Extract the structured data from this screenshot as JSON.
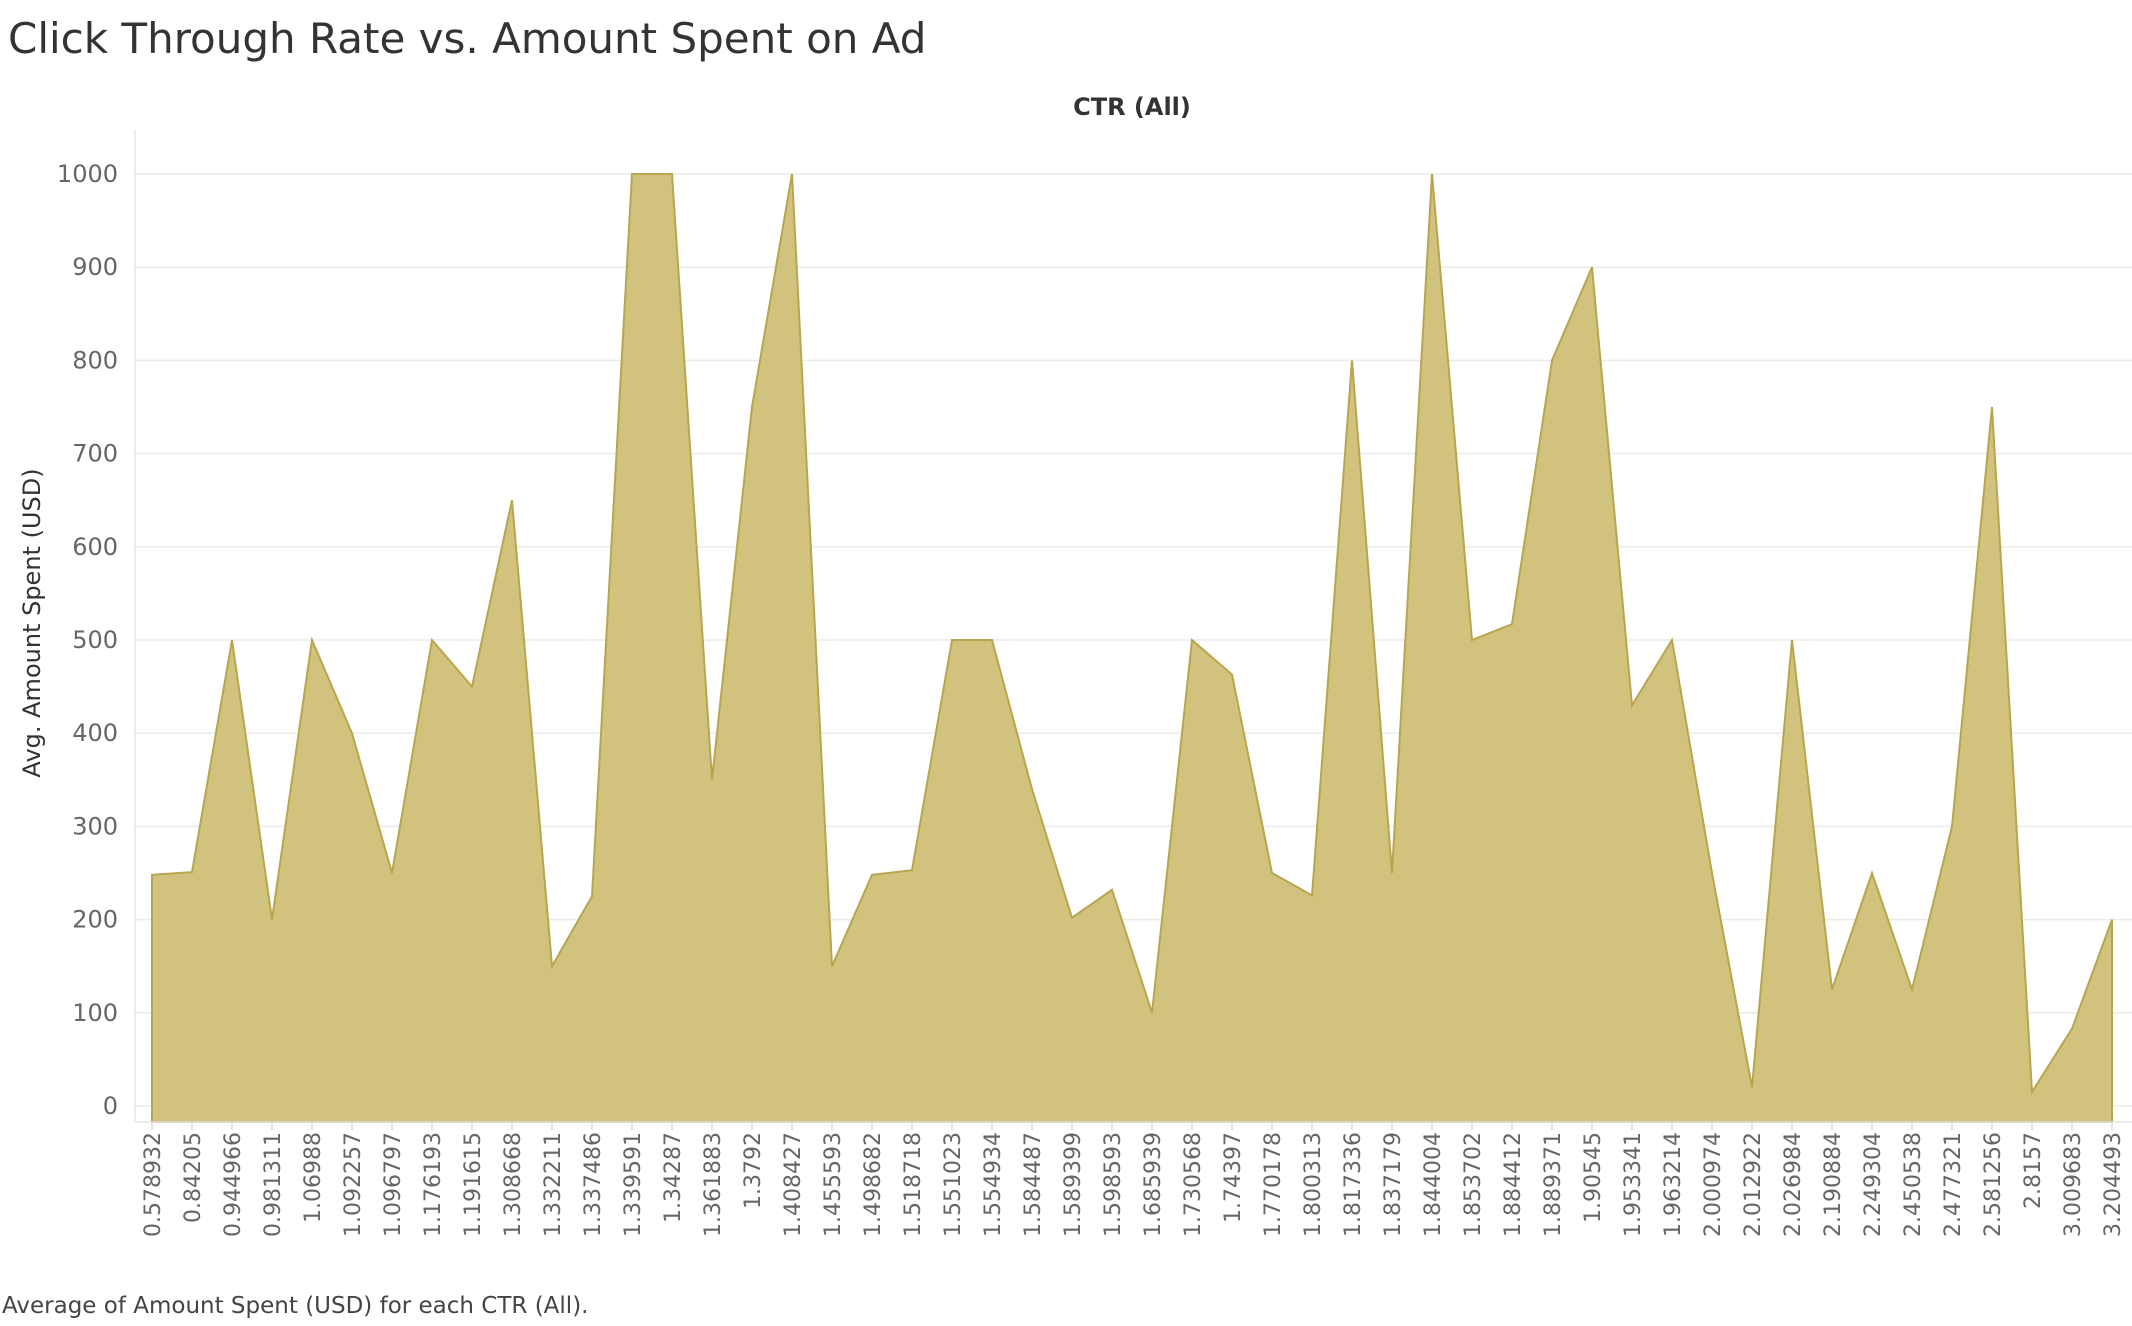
{
  "title": "Click Through Rate vs. Amount Spent on Ad",
  "caption": "Average of Amount Spent (USD) for each CTR (All).",
  "colors": {
    "area_fill": "#D1C27D",
    "area_stroke": "#B9A550",
    "grid": "#EBEBEB"
  },
  "chart_data": {
    "type": "area",
    "title": "",
    "header": "CTR (All)",
    "xlabel": "",
    "ylabel": "Avg. Amount Spent (USD)",
    "ylim": [
      0,
      1000
    ],
    "yticks": [
      0,
      100,
      200,
      300,
      400,
      500,
      600,
      700,
      800,
      900,
      1000
    ],
    "grid": true,
    "categories": [
      "0.578932",
      "0.84205",
      "0.944966",
      "0.981311",
      "1.06988",
      "1.092257",
      "1.096797",
      "1.176193",
      "1.191615",
      "1.308668",
      "1.332211",
      "1.337486",
      "1.339591",
      "1.34287",
      "1.361883",
      "1.3792",
      "1.408427",
      "1.455593",
      "1.498682",
      "1.518718",
      "1.551023",
      "1.554934",
      "1.584487",
      "1.589399",
      "1.598593",
      "1.685939",
      "1.730568",
      "1.74397",
      "1.770178",
      "1.800313",
      "1.817336",
      "1.837179",
      "1.844004",
      "1.853702",
      "1.884412",
      "1.889371",
      "1.90545",
      "1.953341",
      "1.963214",
      "2.000974",
      "2.012922",
      "2.026984",
      "2.190884",
      "2.249304",
      "2.450538",
      "2.477321",
      "2.581256",
      "2.8157",
      "3.009683",
      "3.204493"
    ],
    "x_labels": [
      "0.578932",
      "0.84205",
      "0.944966",
      "0.981311",
      "1.06988",
      "1.092257",
      "1.096797",
      "1.176193",
      "1.191615",
      "1.308668",
      "1.332211",
      "1.337486",
      "1.339591",
      "1.34287",
      "1.361883",
      "1.3792",
      "1.408427",
      "1.455593",
      "1.498682",
      "1.518718",
      "1.551023",
      "1.554934",
      "1.584487",
      "1.589399",
      "1.598593",
      "1.685939",
      "1.730568",
      "1.74397",
      "1.770178",
      "1.800313",
      "1.817336",
      "1.837179",
      "1.844004",
      "1.853702",
      "1.884412",
      "1.889371",
      "1.90545",
      "1.953341",
      "1.963214",
      "2.000974",
      "2.012922",
      "2.026984",
      "2.190884",
      "2.249304",
      "2.450538",
      "2.477321",
      "2.581256",
      "2.8157",
      "3.009683",
      "3.204493"
    ],
    "values": [
      248,
      251,
      500,
      200,
      500,
      400,
      250,
      500,
      450,
      650,
      150,
      225,
      1000,
      1000,
      350,
      750,
      1000,
      150,
      248,
      253,
      500,
      500,
      340,
      202,
      232,
      100,
      500,
      463,
      250,
      226,
      800,
      250,
      1000,
      500,
      517,
      800,
      900,
      430,
      500,
      250,
      20,
      500,
      125,
      250,
      125,
      300,
      750,
      15,
      83,
      200
    ]
  }
}
